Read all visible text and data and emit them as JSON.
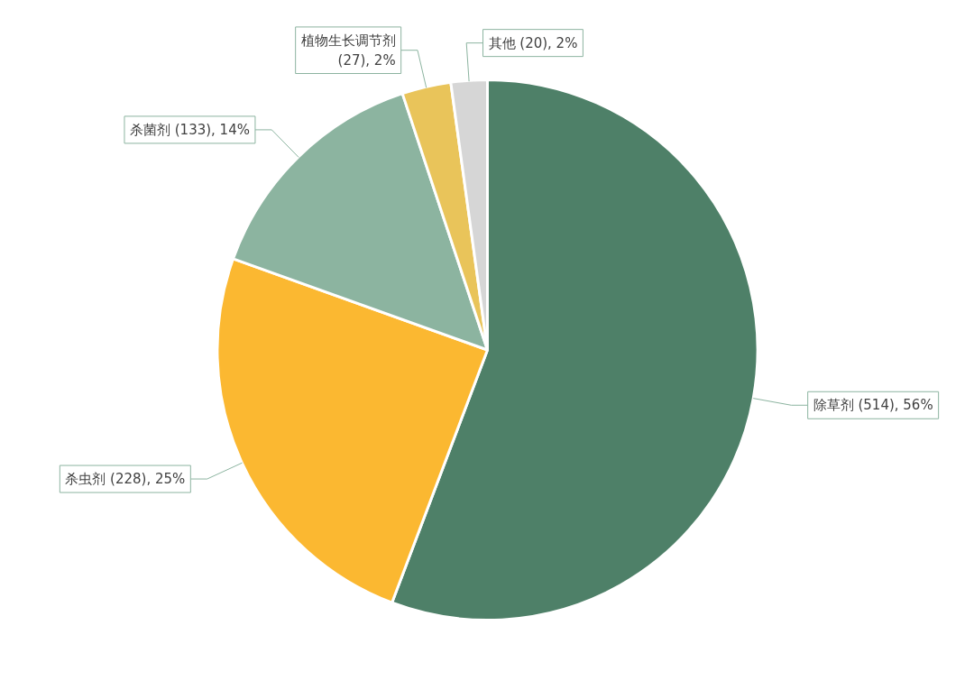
{
  "chart_data": {
    "type": "pie",
    "categories": [
      "除草剂",
      "杀虫剂",
      "杀菌剂",
      "植物生长调节剂",
      "其他"
    ],
    "values": [
      514,
      228,
      133,
      27,
      20
    ],
    "value_labels": [
      "(514), 56%",
      "(228), 25%",
      "(133), 14%",
      "(27), 2%",
      "(20), 2%"
    ],
    "colors": [
      "#4e8068",
      "#fbb831",
      "#8cb4a0",
      "#e9c45a",
      "#d6d6d6"
    ]
  }
}
